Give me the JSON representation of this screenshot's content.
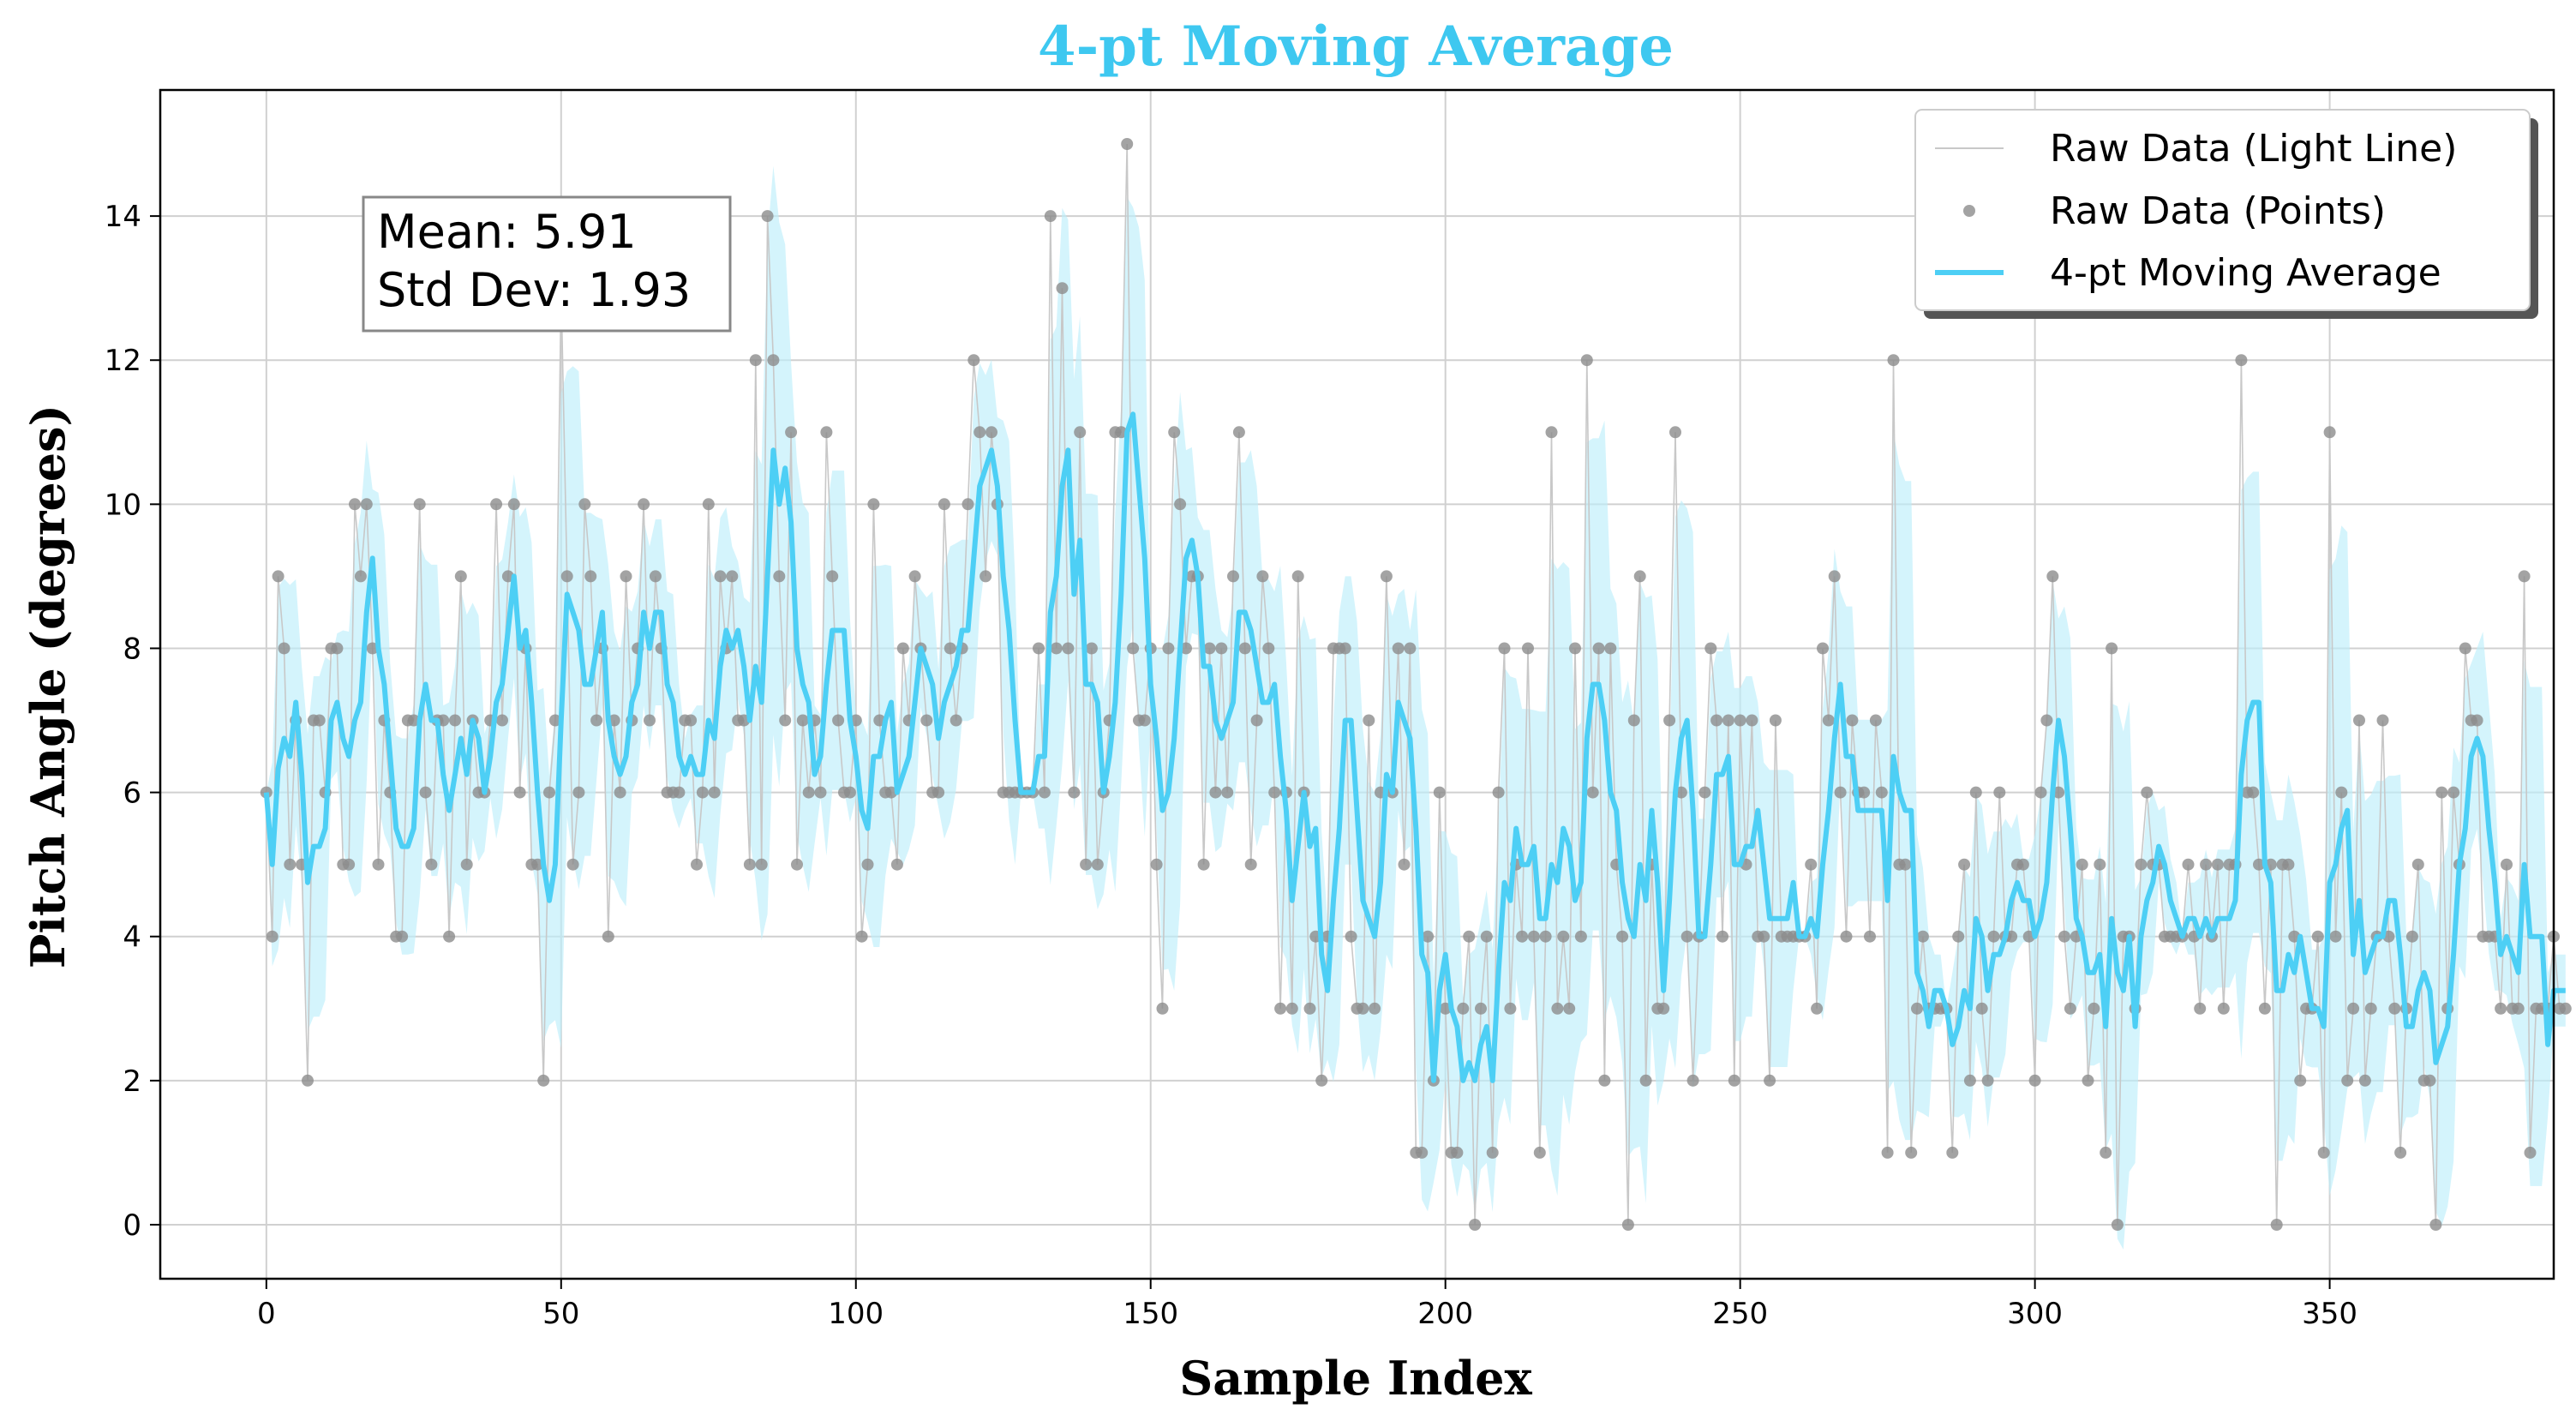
{
  "chart_data": {
    "type": "line",
    "title": "4-pt Moving Average",
    "xlabel": "Sample Index",
    "ylabel": "Pitch Angle (degrees)",
    "xlim": [
      -18,
      388
    ],
    "ylim": [
      -0.75,
      15.75
    ],
    "xticks": [
      0,
      50,
      100,
      150,
      200,
      250,
      300,
      350
    ],
    "yticks": [
      0,
      2,
      4,
      6,
      8,
      10,
      12,
      14
    ],
    "grid": true,
    "legend_position": "top-right",
    "colors": {
      "title": "#3ec8f0",
      "moving_average": "#4dcff5",
      "band": "#bdeefb",
      "raw_points": "#8c8c8c",
      "raw_line": "#c8c8c8"
    },
    "annotation": {
      "mean_text": "Mean: 5.91",
      "std_text": "Std Dev: 1.93"
    },
    "legend": [
      "Raw Data (Light Line)",
      "Raw Data (Points)",
      "4-pt Moving Average"
    ],
    "window": 4,
    "series": [
      {
        "name": "Raw Data (Points)",
        "values": [
          6,
          4,
          9,
          8,
          5,
          7,
          5,
          2,
          7,
          7,
          6,
          8,
          8,
          5,
          5,
          10,
          9,
          10,
          8,
          5,
          7,
          6,
          4,
          4,
          7,
          7,
          10,
          6,
          5,
          7,
          7,
          4,
          7,
          9,
          5,
          7,
          6,
          6,
          7,
          10,
          7,
          9,
          10,
          6,
          8,
          5,
          5,
          2,
          6,
          7,
          13,
          9,
          5,
          6,
          10,
          9,
          7,
          8,
          4,
          7,
          6,
          9,
          7,
          8,
          10,
          7,
          9,
          8,
          6,
          6,
          6,
          7,
          7,
          5,
          6,
          10,
          6,
          9,
          8,
          9,
          7,
          7,
          5,
          12,
          5,
          14,
          12,
          9,
          7,
          11,
          5,
          7,
          6,
          7,
          6,
          11,
          9,
          7,
          6,
          6,
          7,
          4,
          5,
          10,
          7,
          6,
          6,
          5,
          8,
          7,
          9,
          8,
          7,
          6,
          6,
          10,
          8,
          7,
          8,
          10,
          12,
          11,
          9,
          11,
          10,
          6,
          6,
          6,
          6,
          6,
          6,
          8,
          6,
          14,
          8,
          13,
          8,
          6,
          11,
          5,
          8,
          5,
          6,
          7,
          11,
          11,
          15,
          8,
          7,
          7,
          8,
          5,
          3,
          8,
          11,
          10,
          8,
          9,
          9,
          5,
          8,
          6,
          8,
          6,
          9,
          11,
          8,
          5,
          7,
          9,
          8,
          6,
          3,
          6,
          3,
          9,
          6,
          3,
          4,
          2,
          4,
          8,
          8,
          8,
          4,
          3,
          3,
          7,
          3,
          6,
          9,
          6,
          8,
          5,
          8,
          1,
          1,
          4,
          2,
          6,
          3,
          1,
          1,
          3,
          4,
          0,
          3,
          4,
          1,
          6,
          8,
          3,
          5,
          4,
          8,
          4,
          1,
          4,
          11,
          3,
          4,
          3,
          8,
          4,
          12,
          6,
          8,
          2,
          8,
          5,
          4,
          0,
          7,
          9,
          2,
          5,
          3,
          3,
          7,
          11,
          6,
          4,
          2,
          4,
          6,
          8,
          7,
          4,
          7,
          2,
          7,
          5,
          7,
          4,
          4,
          2,
          7,
          4,
          4,
          4,
          4,
          4,
          5,
          3,
          8,
          7,
          9,
          6,
          4,
          7,
          6,
          6,
          4,
          7,
          6,
          1,
          12,
          5,
          5,
          1,
          3,
          4,
          3,
          3,
          3,
          3,
          1,
          4,
          5,
          2,
          6,
          3,
          2,
          4,
          6,
          4,
          4,
          5,
          5,
          4,
          2,
          6,
          7,
          9,
          6,
          4,
          3,
          4,
          5,
          2,
          3,
          5,
          1,
          8,
          0,
          4,
          4,
          3,
          5,
          6,
          5,
          5,
          4,
          4,
          4,
          4,
          5,
          4,
          3,
          5,
          4,
          5,
          3,
          5,
          5,
          12,
          6,
          6,
          5,
          3,
          5,
          0,
          5,
          5,
          4,
          2,
          3,
          3,
          4,
          1,
          11,
          4,
          6,
          2,
          3,
          7,
          2,
          3,
          4,
          7,
          4,
          3,
          1,
          3,
          4,
          5,
          2,
          2,
          0,
          6,
          3,
          6,
          5,
          8,
          7,
          7,
          4,
          4,
          4,
          3,
          5,
          3,
          3,
          9,
          1,
          3,
          3,
          3,
          4,
          3,
          3
        ]
      },
      {
        "name": "4-pt Moving Average",
        "values": []
      },
      {
        "name": "Raw Data (Light Line)",
        "values": []
      }
    ]
  }
}
